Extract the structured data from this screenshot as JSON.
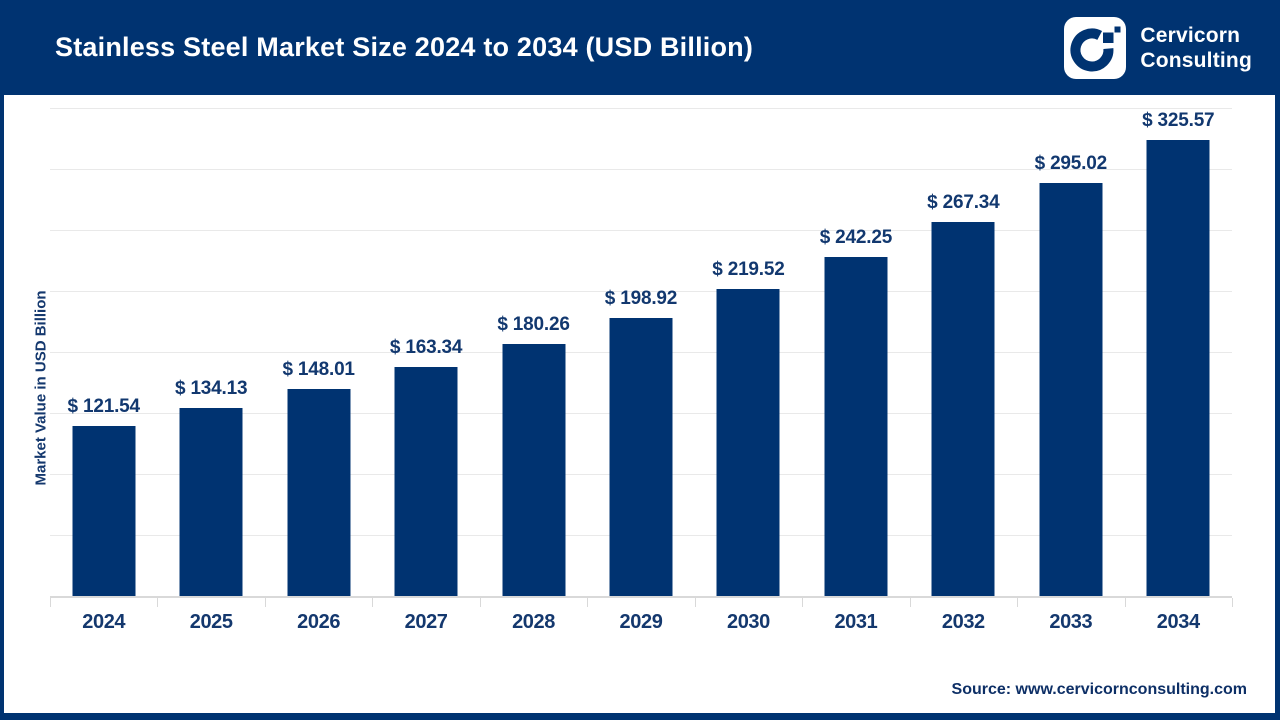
{
  "header": {
    "title": "Stainless Steel Market Size 2024 to 2034 (USD Billion)",
    "logo": {
      "line1": "Cervicorn",
      "line2": "Consulting"
    }
  },
  "chart_data": {
    "type": "bar",
    "title": "Stainless Steel Market Size 2024 to 2034 (USD Billion)",
    "categories": [
      "2024",
      "2025",
      "2026",
      "2027",
      "2028",
      "2029",
      "2030",
      "2031",
      "2032",
      "2033",
      "2034"
    ],
    "values": [
      121.54,
      134.13,
      148.01,
      163.34,
      180.26,
      198.92,
      219.52,
      242.25,
      267.34,
      295.02,
      325.57
    ],
    "value_prefix": "$ ",
    "xlabel": "",
    "ylabel": "Market Value in USD Billion",
    "ylim": [
      0,
      350
    ],
    "gridline_count": 8,
    "grid": true,
    "legend": false,
    "bar_color": "#003371"
  },
  "footer": {
    "source": "Source: www.cervicornconsulting.com"
  },
  "colors": {
    "navy": "#003371",
    "label_text": "#12386f",
    "gridline": "#e9e9e9",
    "axis": "#d9d9d9",
    "title_text": "#ffffff"
  }
}
